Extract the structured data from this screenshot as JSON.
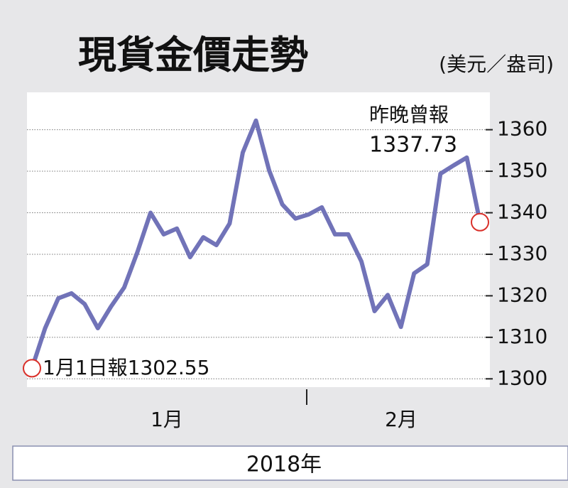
{
  "chart_data": {
    "type": "line",
    "title": "現貨金價走勢",
    "unit": "(美元／盎司)",
    "x_label": "2018年",
    "month_labels": [
      "1月",
      "2月"
    ],
    "categories": [
      null,
      null,
      null,
      null,
      null,
      null,
      null,
      null,
      null,
      null,
      null,
      null,
      null,
      null,
      null,
      null,
      null,
      null,
      null,
      null,
      null,
      null,
      null,
      null,
      null,
      null,
      null,
      null,
      null,
      null,
      null,
      null,
      null,
      null,
      null
    ],
    "series": [
      {
        "name": "現貨金價",
        "color": "#7173b8",
        "values": [
          1302.55,
          1312.2,
          1319.4,
          1320.6,
          1318,
          1312.2,
          1317.4,
          1322,
          1330.5,
          1340,
          1334.8,
          1336.2,
          1329.3,
          1334.1,
          1332.2,
          1337.4,
          1354.5,
          1362.2,
          1350.2,
          1342,
          1338.6,
          1339.6,
          1341.3,
          1334.8,
          1334.8,
          1328.3,
          1316.3,
          1320.2,
          1312.5,
          1325.4,
          1327.6,
          1349.4,
          1351.4,
          1353.3,
          1337.73
        ]
      }
    ],
    "annotations": [
      {
        "text": "1月1日報1302.55"
      },
      {
        "lines": [
          "昨晚曾報",
          "1337.73"
        ]
      }
    ],
    "marker_color": "#d9302a",
    "ylim": [
      1298,
      1369
    ],
    "yticks": [
      1300,
      1310,
      1320,
      1330,
      1340,
      1350,
      1360
    ],
    "grid": true
  }
}
